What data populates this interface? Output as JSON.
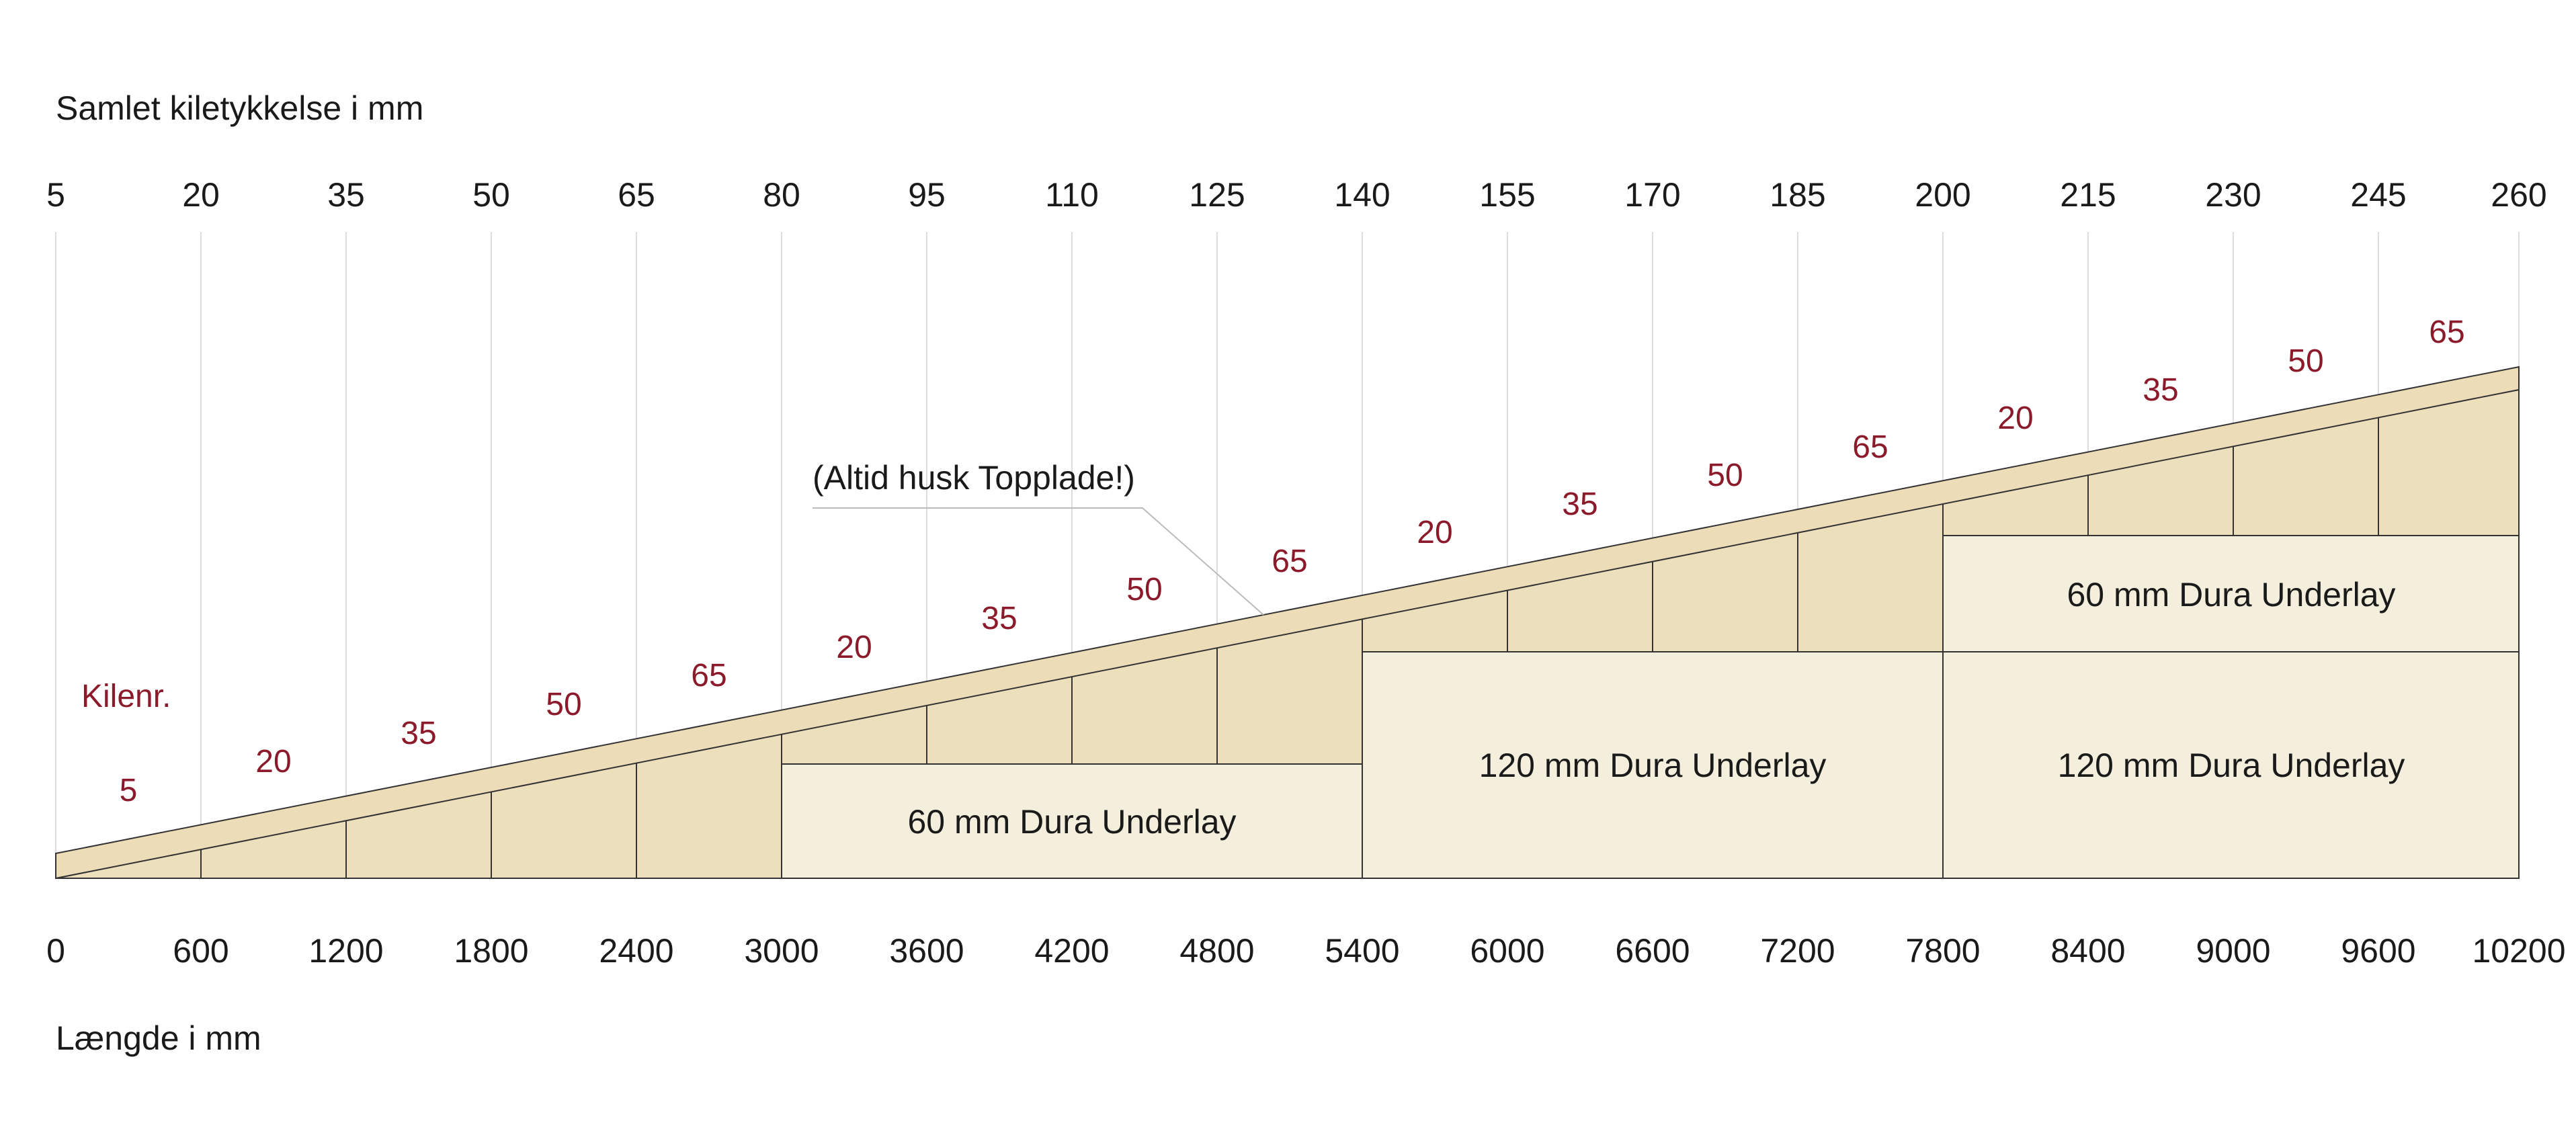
{
  "diagram": {
    "top_axis_title": "Samlet kiletykkelse i mm",
    "bottom_axis_title": "Længde i mm",
    "wedge_column_title": "Kilenr.",
    "note": "(Altid husk Topplade!)",
    "top_ticks": [
      "5",
      "20",
      "35",
      "50",
      "65",
      "80",
      "95",
      "110",
      "125",
      "140",
      "155",
      "170",
      "185",
      "200",
      "215",
      "230",
      "245",
      "260"
    ],
    "bottom_ticks": [
      "0",
      "600",
      "1200",
      "1800",
      "2400",
      "3000",
      "3600",
      "4200",
      "4800",
      "5400",
      "6000",
      "6600",
      "7200",
      "7800",
      "8400",
      "9000",
      "9600",
      "10200"
    ],
    "wedge_numbers": [
      "5",
      "20",
      "35",
      "50",
      "65",
      "20",
      "35",
      "50",
      "65",
      "20",
      "35",
      "50",
      "65",
      "20",
      "35",
      "50",
      "65"
    ],
    "underlays": [
      {
        "label": "60 mm Dura Underlay"
      },
      {
        "label": "120 mm Dura Underlay"
      },
      {
        "label": "60 mm Dura Underlay"
      },
      {
        "label": "120 mm Dura Underlay"
      }
    ],
    "colors": {
      "wedge_fill": "#ecdfbc",
      "top_plate_fill": "#ecdcb8",
      "underlay_fill": "#f4eedc",
      "outline": "#333333",
      "gridline": "#dddddd",
      "wedge_number_color": "#8b1a2b",
      "text": "#1a1a1a"
    }
  }
}
